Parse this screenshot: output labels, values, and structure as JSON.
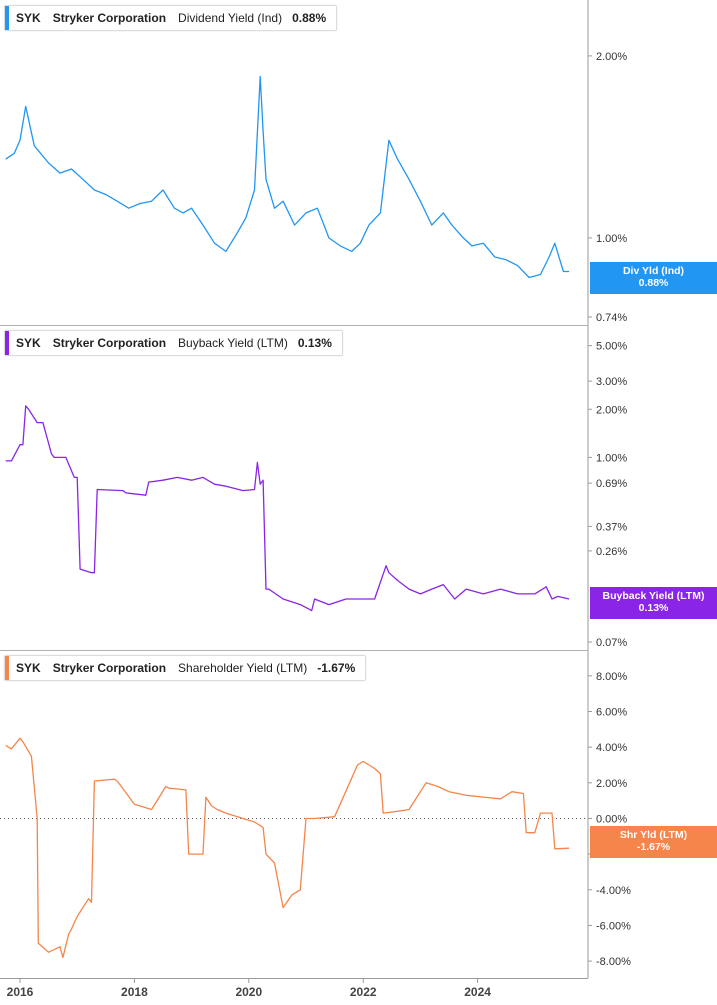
{
  "legends": [
    {
      "ticker": "SYK",
      "company": "Stryker Corporation",
      "metric": "Dividend Yield (Ind)",
      "value": "0.88%"
    },
    {
      "ticker": "SYK",
      "company": "Stryker Corporation",
      "metric": "Buyback Yield (LTM)",
      "value": "0.13%"
    },
    {
      "ticker": "SYK",
      "company": "Stryker Corporation",
      "metric": "Shareholder Yield (LTM)",
      "value": "-1.67%"
    }
  ],
  "tags": [
    {
      "label": "Div Yld (Ind)",
      "value": "0.88%",
      "color": "#2196f3"
    },
    {
      "label": "Buyback Yield (LTM)",
      "value": "0.13%",
      "color": "#8a24e6"
    },
    {
      "label": "Shr Yld (LTM)",
      "value": "-1.67%",
      "color": "#f5854a"
    }
  ],
  "x_axis": {
    "ticks": [
      "2016",
      "2018",
      "2020",
      "2022",
      "2024"
    ]
  },
  "chart_data": [
    {
      "type": "line",
      "title": "Dividend Yield (Ind)",
      "color": "#2196f3",
      "scale": "log",
      "ylim": [
        0.74,
        2.4
      ],
      "yticks": [
        {
          "value": 2.0,
          "label": "2.00%"
        },
        {
          "value": 1.0,
          "label": "1.00%"
        },
        {
          "value": 0.74,
          "label": "0.74%"
        }
      ],
      "ylabels_hidden_value": "0.88%",
      "x": [
        2015.75,
        2015.9,
        2016.0,
        2016.1,
        2016.25,
        2016.5,
        2016.7,
        2016.9,
        2017.1,
        2017.3,
        2017.5,
        2017.7,
        2017.9,
        2018.1,
        2018.3,
        2018.5,
        2018.7,
        2018.85,
        2019.0,
        2019.2,
        2019.4,
        2019.6,
        2019.8,
        2019.95,
        2020.1,
        2020.2,
        2020.25,
        2020.3,
        2020.45,
        2020.6,
        2020.8,
        2021.0,
        2021.2,
        2021.4,
        2021.6,
        2021.8,
        2021.95,
        2022.1,
        2022.3,
        2022.45,
        2022.6,
        2022.8,
        2023.0,
        2023.2,
        2023.4,
        2023.55,
        2023.75,
        2023.9,
        2024.1,
        2024.3,
        2024.5,
        2024.7,
        2024.9,
        2025.1,
        2025.25,
        2025.35,
        2025.5,
        2025.6
      ],
      "y": [
        1.35,
        1.38,
        1.45,
        1.65,
        1.42,
        1.33,
        1.28,
        1.3,
        1.25,
        1.2,
        1.18,
        1.15,
        1.12,
        1.14,
        1.15,
        1.2,
        1.12,
        1.1,
        1.12,
        1.05,
        0.98,
        0.95,
        1.02,
        1.08,
        1.2,
        1.85,
        1.5,
        1.25,
        1.12,
        1.15,
        1.05,
        1.1,
        1.12,
        1.0,
        0.97,
        0.95,
        0.98,
        1.05,
        1.1,
        1.45,
        1.35,
        1.25,
        1.15,
        1.05,
        1.1,
        1.05,
        1.0,
        0.97,
        0.98,
        0.93,
        0.92,
        0.9,
        0.86,
        0.87,
        0.93,
        0.98,
        0.88,
        0.88
      ]
    },
    {
      "type": "line",
      "title": "Buyback Yield (LTM)",
      "color": "#8a24e6",
      "scale": "log",
      "ylim": [
        0.07,
        6.0
      ],
      "yticks": [
        {
          "value": 5.0,
          "label": "5.00%"
        },
        {
          "value": 3.0,
          "label": "3.00%"
        },
        {
          "value": 2.0,
          "label": "2.00%"
        },
        {
          "value": 1.0,
          "label": "1.00%"
        },
        {
          "value": 0.69,
          "label": "0.69%"
        },
        {
          "value": 0.37,
          "label": "0.37%"
        },
        {
          "value": 0.26,
          "label": "0.26%"
        },
        {
          "value": 0.07,
          "label": "0.07%"
        }
      ],
      "x": [
        2015.75,
        2015.85,
        2016.0,
        2016.05,
        2016.1,
        2016.15,
        2016.3,
        2016.4,
        2016.55,
        2016.6,
        2016.75,
        2016.8,
        2016.95,
        2017.0,
        2017.05,
        2017.25,
        2017.3,
        2017.35,
        2017.8,
        2017.85,
        2018.2,
        2018.25,
        2018.5,
        2018.75,
        2019.0,
        2019.2,
        2019.4,
        2019.6,
        2019.9,
        2020.1,
        2020.15,
        2020.2,
        2020.25,
        2020.3,
        2020.35,
        2020.6,
        2020.9,
        2021.1,
        2021.15,
        2021.4,
        2021.7,
        2021.95,
        2022.2,
        2022.4,
        2022.45,
        2022.6,
        2022.8,
        2023.0,
        2023.2,
        2023.4,
        2023.6,
        2023.8,
        2024.1,
        2024.4,
        2024.7,
        2025.0,
        2025.2,
        2025.3,
        2025.4,
        2025.6
      ],
      "y": [
        0.95,
        0.95,
        1.2,
        1.2,
        2.1,
        2.0,
        1.65,
        1.65,
        1.05,
        1.0,
        1.0,
        1.0,
        0.75,
        0.75,
        0.2,
        0.19,
        0.19,
        0.63,
        0.62,
        0.6,
        0.58,
        0.7,
        0.72,
        0.75,
        0.72,
        0.75,
        0.68,
        0.66,
        0.62,
        0.63,
        0.93,
        0.68,
        0.72,
        0.15,
        0.15,
        0.13,
        0.12,
        0.11,
        0.13,
        0.12,
        0.13,
        0.13,
        0.13,
        0.21,
        0.19,
        0.17,
        0.15,
        0.14,
        0.15,
        0.16,
        0.13,
        0.15,
        0.14,
        0.15,
        0.14,
        0.14,
        0.155,
        0.13,
        0.135,
        0.13
      ]
    },
    {
      "type": "line",
      "title": "Shareholder Yield (LTM)",
      "color": "#f5854a",
      "scale": "linear",
      "ylim": [
        -8.5,
        9.0
      ],
      "reference_line": 0,
      "yticks": [
        {
          "value": 8,
          "label": "8.00%"
        },
        {
          "value": 6,
          "label": "6.00%"
        },
        {
          "value": 4,
          "label": "4.00%"
        },
        {
          "value": 2,
          "label": "2.00%"
        },
        {
          "value": 0,
          "label": "0.00%"
        },
        {
          "value": -2,
          "label": "-2.00%"
        },
        {
          "value": -4,
          "label": "-4.00%"
        },
        {
          "value": -6,
          "label": "-6.00%"
        },
        {
          "value": -8,
          "label": "-8.00%"
        }
      ],
      "x": [
        2015.75,
        2015.85,
        2016.0,
        2016.05,
        2016.2,
        2016.3,
        2016.32,
        2016.5,
        2016.7,
        2016.75,
        2016.85,
        2016.9,
        2017.0,
        2017.2,
        2017.25,
        2017.3,
        2017.65,
        2017.7,
        2018.0,
        2018.3,
        2018.55,
        2018.6,
        2018.9,
        2018.95,
        2019.2,
        2019.25,
        2019.35,
        2019.45,
        2019.6,
        2019.9,
        2020.1,
        2020.25,
        2020.3,
        2020.45,
        2020.6,
        2020.75,
        2020.9,
        2021.0,
        2021.15,
        2021.5,
        2021.9,
        2022.0,
        2022.2,
        2022.3,
        2022.35,
        2022.6,
        2022.8,
        2023.1,
        2023.3,
        2023.5,
        2023.8,
        2024.1,
        2024.4,
        2024.6,
        2024.8,
        2024.85,
        2025.0,
        2025.1,
        2025.3,
        2025.35,
        2025.6
      ],
      "y": [
        4.1,
        3.9,
        4.5,
        4.3,
        3.5,
        0.0,
        -7.0,
        -7.5,
        -7.2,
        -7.8,
        -6.5,
        -6.2,
        -5.5,
        -4.5,
        -4.7,
        2.1,
        2.2,
        2.1,
        0.8,
        0.5,
        1.8,
        1.7,
        1.6,
        -2.0,
        -2.0,
        1.2,
        0.7,
        0.5,
        0.3,
        0.0,
        -0.2,
        -0.5,
        -2.0,
        -2.5,
        -5.0,
        -4.3,
        -4.0,
        0.0,
        0.0,
        0.1,
        3.0,
        3.2,
        2.8,
        2.5,
        0.3,
        0.4,
        0.5,
        2.0,
        1.8,
        1.5,
        1.3,
        1.2,
        1.1,
        1.5,
        1.4,
        -0.8,
        -0.8,
        0.3,
        0.3,
        -1.7,
        -1.67
      ]
    }
  ]
}
